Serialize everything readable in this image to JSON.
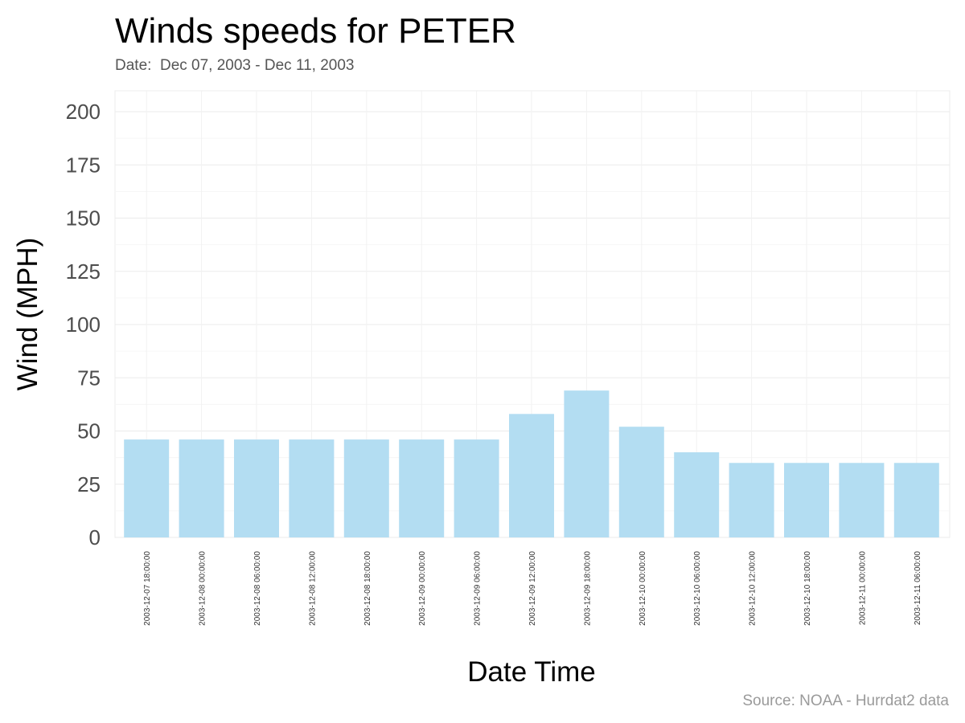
{
  "chart_data": {
    "type": "bar",
    "title": "Winds speeds for PETER",
    "subtitle": "Date:  Dec 07, 2003 - Dec 11, 2003",
    "xlabel": "Date Time",
    "ylabel": "Wind (MPH)",
    "caption": "Source: NOAA - Hurrdat2 data",
    "ylim": [
      0,
      200
    ],
    "yticks": [
      0,
      25,
      50,
      75,
      100,
      125,
      150,
      175,
      200
    ],
    "grid": true,
    "bar_color": "#b3ddf2",
    "categories": [
      "2003-12-07 18:00:00",
      "2003-12-08 00:00:00",
      "2003-12-08 06:00:00",
      "2003-12-08 12:00:00",
      "2003-12-08 18:00:00",
      "2003-12-09 00:00:00",
      "2003-12-09 06:00:00",
      "2003-12-09 12:00:00",
      "2003-12-09 18:00:00",
      "2003-12-10 00:00:00",
      "2003-12-10 06:00:00",
      "2003-12-10 12:00:00",
      "2003-12-10 18:00:00",
      "2003-12-11 00:00:00",
      "2003-12-11 06:00:00"
    ],
    "values": [
      46,
      46,
      46,
      46,
      46,
      46,
      46,
      58,
      69,
      52,
      40,
      35,
      35,
      35,
      35
    ]
  }
}
